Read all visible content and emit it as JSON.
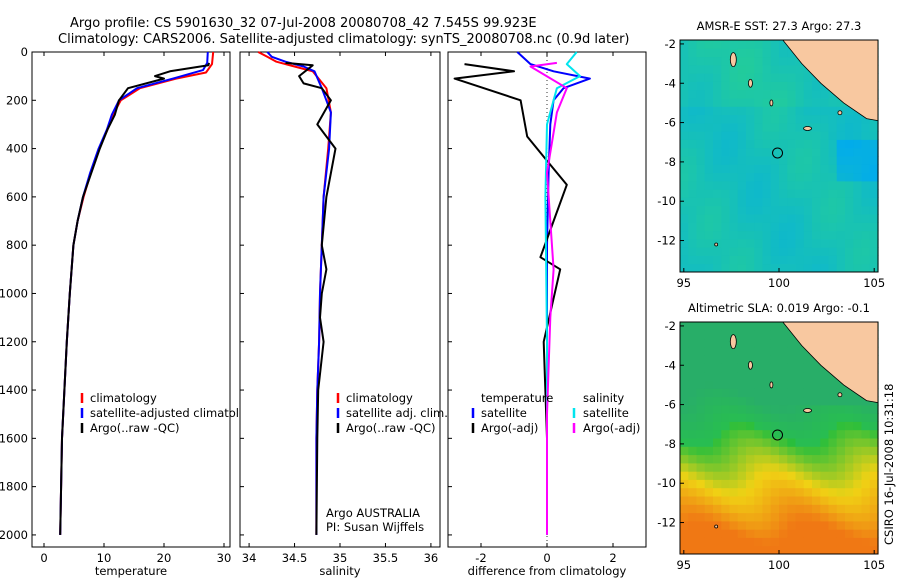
{
  "header": {
    "line1": "Argo profile: CS 5901630_32 07-Jul-2008 20080708_42 7.545S 99.923E",
    "line2": "Climatology: CARS2006. Satellite-adjusted climatology: synTS_20080708.nc (0.9d later)"
  },
  "colors": {
    "climatology": "#ff0000",
    "satellite": "#0000ff",
    "argo": "#000000",
    "salinity_satellite": "#00e5ee",
    "salinity_argo": "#ff00ff",
    "land": "#f8c8a0",
    "coast": "#000000"
  },
  "stamp": "CSIRO 16-Jul-2008 10:31:18",
  "chart_data": [
    {
      "type": "line",
      "xlabel": "temperature",
      "xlim": [
        -2,
        31
      ],
      "ylim": [
        2050,
        0
      ],
      "xticks": [
        0,
        10,
        20,
        30
      ],
      "yticks": [
        0,
        200,
        400,
        600,
        800,
        1000,
        1200,
        1400,
        1600,
        1800,
        2000
      ],
      "legend": [
        "climatology",
        "satellite-adjusted climatology",
        "Argo(..raw -QC)"
      ],
      "series": [
        {
          "name": "climatology",
          "color": "climatology",
          "x": [
            28.2,
            28.0,
            27.0,
            22.0,
            16.0,
            12.8,
            11.5,
            10.6,
            9.2,
            7.8,
            6.6,
            5.6,
            4.9,
            4.3,
            3.8,
            3.4,
            3.0,
            2.7
          ],
          "y": [
            0,
            50,
            85,
            110,
            150,
            200,
            260,
            320,
            400,
            500,
            600,
            700,
            800,
            1000,
            1200,
            1400,
            1600,
            2000
          ]
        },
        {
          "name": "satellite-adjusted climatology",
          "color": "satellite",
          "x": [
            27.3,
            27.2,
            26.5,
            21.5,
            15.5,
            12.5,
            11.3,
            10.5,
            9.1,
            7.7,
            6.5,
            5.6,
            4.9,
            4.3,
            3.8,
            3.4,
            3.0,
            2.7
          ],
          "y": [
            0,
            45,
            75,
            110,
            150,
            200,
            260,
            320,
            400,
            500,
            600,
            700,
            800,
            1000,
            1200,
            1400,
            1600,
            2000
          ]
        },
        {
          "name": "Argo(..raw -QC)",
          "color": "argo",
          "x": [
            27.5,
            27.4,
            21.0,
            18.5,
            20.0,
            14.0,
            12.5,
            11.8,
            10.6,
            9.3,
            7.9,
            6.5,
            5.6,
            4.9,
            4.3,
            3.8,
            3.4,
            3.0,
            2.7
          ],
          "y": [
            45,
            55,
            80,
            100,
            110,
            150,
            200,
            260,
            320,
            400,
            500,
            600,
            700,
            800,
            1000,
            1200,
            1400,
            1600,
            2000
          ]
        }
      ]
    },
    {
      "type": "line",
      "xlabel": "salinity",
      "xlim": [
        33.9,
        36.1
      ],
      "ylim": [
        2050,
        0
      ],
      "xticks": [
        34,
        34.5,
        35,
        35.5,
        36
      ],
      "xtick_labels": [
        "34",
        "34.5",
        "35",
        "35.5",
        "36"
      ],
      "legend": [
        "climatology",
        "satellite adj. clim.",
        "Argo(..raw -QC)"
      ],
      "annotation": [
        "Argo AUSTRALIA",
        "PI: Susan Wijffels"
      ],
      "series": [
        {
          "name": "climatology",
          "color": "climatology",
          "x": [
            34.1,
            34.2,
            34.3,
            34.5,
            34.7,
            34.85,
            34.9,
            34.87,
            34.82,
            34.8,
            34.78,
            34.77,
            34.75,
            34.74,
            34.74,
            34.74,
            34.74
          ],
          "y": [
            0,
            20,
            40,
            60,
            80,
            150,
            250,
            400,
            600,
            800,
            1000,
            1200,
            1400,
            1600,
            1800,
            1900,
            2000
          ]
        },
        {
          "name": "satellite adj. clim.",
          "color": "satellite",
          "x": [
            34.2,
            34.25,
            34.4,
            34.6,
            34.72,
            34.8,
            34.9,
            34.88,
            34.82,
            34.8,
            34.78,
            34.77,
            34.75,
            34.74,
            34.74,
            34.74
          ],
          "y": [
            0,
            20,
            40,
            60,
            80,
            150,
            250,
            400,
            600,
            800,
            1000,
            1200,
            1400,
            1600,
            1800,
            2000
          ]
        },
        {
          "name": "Argo(..raw -QC)",
          "color": "argo",
          "x": [
            34.4,
            34.7,
            34.55,
            34.6,
            34.8,
            34.9,
            34.75,
            34.95,
            34.85,
            34.8,
            34.85,
            34.8,
            34.78,
            34.82,
            34.76,
            34.75,
            34.74
          ],
          "y": [
            45,
            55,
            100,
            130,
            150,
            200,
            300,
            400,
            600,
            800,
            900,
            1000,
            1100,
            1200,
            1400,
            1600,
            2000
          ]
        }
      ]
    },
    {
      "type": "line",
      "xlabel": "difference from climatology",
      "xlim": [
        -3,
        3
      ],
      "ylim": [
        2050,
        0
      ],
      "xticks": [
        -2,
        0,
        2
      ],
      "legend": {
        "temperature": [
          "satellite",
          "Argo(-adj)"
        ],
        "salinity": [
          "satellite",
          "Argo(-adj)"
        ]
      },
      "series": [
        {
          "name": "temperature satellite",
          "color": "satellite",
          "x": [
            -0.9,
            -0.5,
            0.2,
            1.3,
            0.5,
            0.2,
            0.1,
            0.05,
            0.0,
            0.0,
            0.0,
            0.0,
            0.0
          ],
          "y": [
            0,
            50,
            80,
            110,
            150,
            200,
            300,
            500,
            800,
            1200,
            1500,
            1800,
            2000
          ]
        },
        {
          "name": "temperature Argo(-adj)",
          "color": "argo",
          "x": [
            -2.5,
            -1.0,
            -2.8,
            -0.8,
            -0.6,
            0.0,
            0.6,
            0.2,
            -0.2,
            0.4,
            -0.1,
            0.0,
            0.0
          ],
          "y": [
            50,
            80,
            110,
            200,
            350,
            450,
            550,
            700,
            850,
            900,
            1200,
            1600,
            2000
          ]
        },
        {
          "name": "salinity satellite",
          "color": "salinity_satellite",
          "x": [
            0.9,
            0.6,
            1.0,
            0.3,
            0.0,
            -0.05,
            0.0,
            0.0
          ],
          "y": [
            0,
            50,
            100,
            150,
            300,
            600,
            1200,
            2000
          ]
        },
        {
          "name": "salinity Argo(-adj)",
          "color": "salinity_argo",
          "x": [
            0.3,
            -0.5,
            0.6,
            0.3,
            0.0,
            0.2,
            0.1,
            0.0,
            0.0
          ],
          "y": [
            45,
            60,
            150,
            250,
            500,
            900,
            1100,
            1500,
            2000
          ]
        }
      ]
    },
    {
      "type": "heatmap",
      "title": "AMSR-E SST: 27.3 Argo: 27.3",
      "xlim": [
        94.8,
        105.2
      ],
      "ylim": [
        -13.6,
        -1.8
      ],
      "xticks": [
        95,
        100,
        105
      ],
      "yticks": [
        -2,
        -4,
        -6,
        -8,
        -10,
        -12
      ],
      "argo_position": [
        99.923,
        -7.545
      ]
    },
    {
      "type": "heatmap",
      "title": "Altimetric SLA: 0.019 Argo: -0.1",
      "xlim": [
        94.8,
        105.2
      ],
      "ylim": [
        -13.6,
        -1.8
      ],
      "xticks": [
        95,
        100,
        105
      ],
      "yticks": [
        -2,
        -4,
        -6,
        -8,
        -10,
        -12
      ],
      "argo_position": [
        99.923,
        -7.545
      ]
    }
  ]
}
